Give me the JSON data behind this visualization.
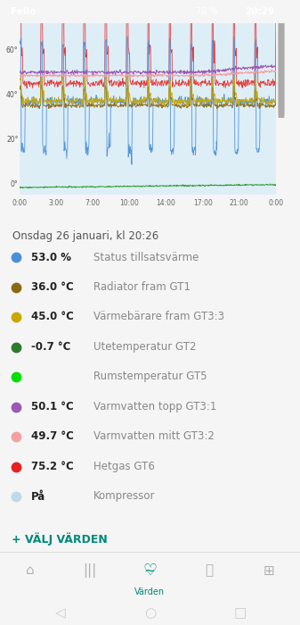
{
  "status_bar_color": "#008577",
  "bg_color": "#f5f5f5",
  "chart_bg_color": "#deeef7",
  "date_label": "Onsdag 26 januari, kl 20:26",
  "x_ticks": [
    "0:00",
    "3:00",
    "7:00",
    "10:00",
    "14:00",
    "17:00",
    "21:00",
    "0:00"
  ],
  "y_ticks": [
    "0°",
    "20°",
    "40°",
    "60°"
  ],
  "y_tick_values": [
    0,
    20,
    40,
    60
  ],
  "legend_items": [
    {
      "color": "#4a90d9",
      "bold_text": "53.0 %",
      "label": "Status tillsatsvärme"
    },
    {
      "color": "#8B6914",
      "bold_text": "36.0 °C",
      "label": "Radiator fram GT1"
    },
    {
      "color": "#c8a800",
      "bold_text": "45.0 °C",
      "label": "Värmebärare fram GT3:3"
    },
    {
      "color": "#2d7a2d",
      "bold_text": "-0.7 °C",
      "label": "Utetemperatur GT2"
    },
    {
      "color": "#00e000",
      "bold_text": "",
      "label": "Rumstemperatur GT5"
    },
    {
      "color": "#9b59b6",
      "bold_text": "50.1 °C",
      "label": "Varmvatten topp GT3:1"
    },
    {
      "color": "#f4a0a0",
      "bold_text": "49.7 °C",
      "label": "Varmvatten mitt GT3:2"
    },
    {
      "color": "#e82020",
      "bold_text": "75.2 °C",
      "label": "Hetgas GT6"
    },
    {
      "color": "#c0d8e8",
      "bold_text": "På",
      "label": "Kompressor"
    }
  ],
  "add_button_color": "#00897b",
  "add_button_text": "+ VÄLJ VÄRDEN",
  "nav_active_color": "#00897b",
  "nav_label": "Värden",
  "scrollbar_track": "#e0e0e0",
  "scrollbar_thumb": "#aaaaaa"
}
